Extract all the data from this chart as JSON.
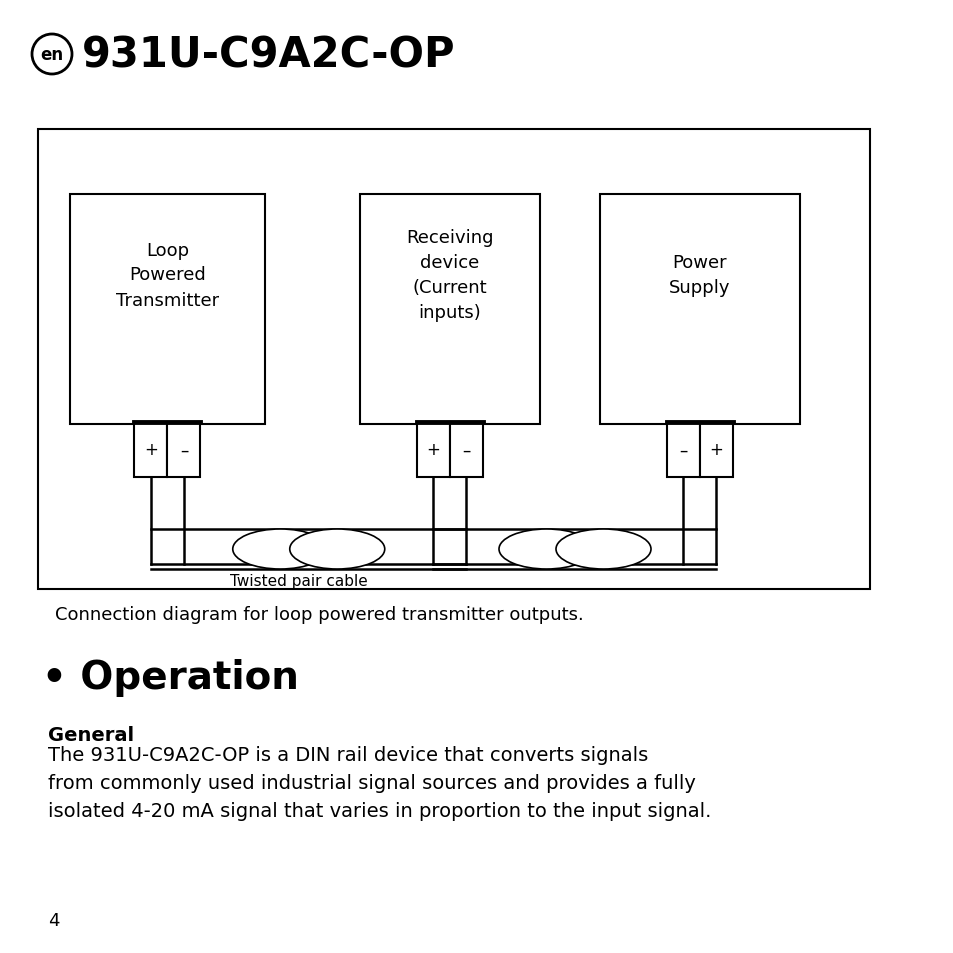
{
  "bg_color": "#ffffff",
  "title_text": "931U-C9A2C-OP",
  "en_label": "en",
  "caption": "Connection diagram for loop powered transmitter outputs.",
  "section_bullet": "•",
  "section_title": "Operation",
  "subsection_title": "General",
  "body_text": "The 931U-C9A2C-OP is a DIN rail device that converts signals\nfrom commonly used industrial signal sources and provides a fully\nisolated 4-20 mA signal that varies in proportion to the input signal.",
  "page_number": "4",
  "device1_label": "Loop\nPowered\nTransmitter",
  "device2_label": "Receiving\ndevice\n(Current\ninputs)",
  "device3_label": "Power\nSupply",
  "device1_terminals": [
    "+",
    "–"
  ],
  "device2_terminals": [
    "+",
    "–"
  ],
  "device3_terminals": [
    "–",
    "+"
  ],
  "cable_label": "Twisted pair cable",
  "title_fontsize": 30,
  "en_fontsize": 12,
  "device_label_fontsize": 13,
  "terminal_fontsize": 12,
  "caption_fontsize": 13,
  "section_fontsize": 28,
  "subsection_fontsize": 14,
  "body_fontsize": 14,
  "page_fontsize": 13,
  "cable_fontsize": 11
}
